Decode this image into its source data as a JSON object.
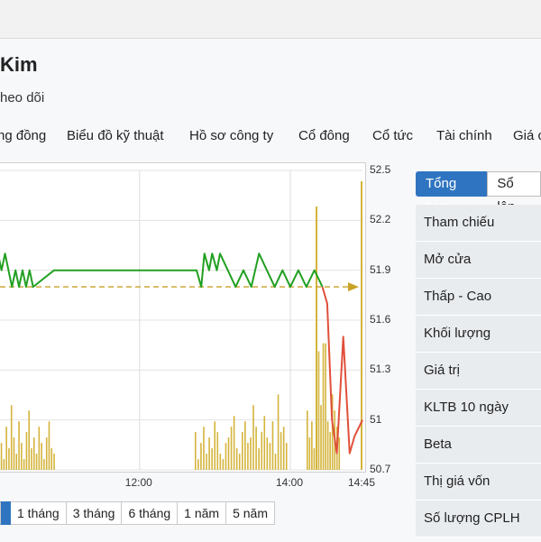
{
  "page": {
    "title": "Kim",
    "follow_label": "heo dõi"
  },
  "tabs": [
    {
      "label": "ng đồng"
    },
    {
      "label": "Biểu đồ kỹ thuật"
    },
    {
      "label": "Hồ sơ công ty"
    },
    {
      "label": "Cổ đông"
    },
    {
      "label": "Cổ tức"
    },
    {
      "label": "Tài chính"
    },
    {
      "label": "Giá c"
    }
  ],
  "chart_data": {
    "type": "line",
    "xlabel": "",
    "ylabel": "",
    "ylim": [
      50.7,
      52.5
    ],
    "y_ticks": [
      "52.5",
      "52.2",
      "51.9",
      "51.6",
      "51.3",
      "51",
      "50.7"
    ],
    "x_ticks": [
      "12:00",
      "14:00",
      "14:45"
    ],
    "reference_price": 51.8,
    "grid": true,
    "series": [
      {
        "color": "#22a022",
        "points": [
          [
            "09:00",
            52.0
          ],
          [
            "09:05",
            51.9
          ],
          [
            "09:10",
            52.0
          ],
          [
            "09:15",
            51.9
          ],
          [
            "09:20",
            52.0
          ],
          [
            "09:25",
            51.9
          ],
          [
            "09:30",
            51.8
          ],
          [
            "09:35",
            51.9
          ],
          [
            "09:40",
            51.8
          ],
          [
            "09:45",
            51.9
          ],
          [
            "09:50",
            51.8
          ],
          [
            "09:55",
            51.9
          ],
          [
            "10:00",
            51.8
          ],
          [
            "10:30",
            51.9
          ],
          [
            "13:00",
            51.9
          ],
          [
            "13:03",
            51.8
          ],
          [
            "13:05",
            52.0
          ],
          [
            "13:08",
            51.9
          ],
          [
            "13:10",
            52.0
          ],
          [
            "13:13",
            51.9
          ],
          [
            "13:15",
            52.0
          ],
          [
            "13:20",
            51.9
          ],
          [
            "13:25",
            51.8
          ],
          [
            "13:30",
            51.9
          ],
          [
            "13:35",
            51.8
          ],
          [
            "13:40",
            52.0
          ],
          [
            "13:45",
            51.9
          ],
          [
            "13:50",
            51.8
          ],
          [
            "13:55",
            51.9
          ],
          [
            "14:00",
            51.8
          ],
          [
            "14:05",
            51.9
          ],
          [
            "14:10",
            51.8
          ],
          [
            "14:15",
            51.9
          ],
          [
            "14:20",
            51.8
          ]
        ]
      },
      {
        "color": "#e0503a",
        "points": [
          [
            "14:20",
            51.8
          ],
          [
            "14:23",
            51.7
          ],
          [
            "14:26",
            51.0
          ],
          [
            "14:29",
            50.8
          ],
          [
            "14:33",
            51.5
          ],
          [
            "14:37",
            50.8
          ],
          [
            "14:40",
            50.9
          ],
          [
            "14:45",
            51.0
          ]
        ]
      }
    ],
    "volume_color": "#d4b43c",
    "volume": [
      3,
      5,
      2,
      8,
      4,
      12,
      6,
      3,
      9,
      5,
      2,
      7,
      11,
      4,
      6,
      3,
      8,
      5,
      2,
      6,
      9,
      4,
      3,
      7,
      2,
      5,
      8,
      3,
      6,
      4,
      9,
      7,
      3,
      2,
      5,
      6,
      8,
      10,
      4,
      3,
      7,
      9,
      5,
      6,
      12,
      8,
      4,
      7,
      10,
      6,
      5,
      9,
      3,
      14,
      7,
      8,
      5,
      11,
      6,
      9,
      4,
      18,
      22,
      12,
      30,
      48,
      9,
      7,
      14,
      11,
      8,
      6
    ]
  },
  "ranges": [
    {
      "label": ""
    },
    {
      "label": "1 tháng"
    },
    {
      "label": "3 tháng"
    },
    {
      "label": "6 tháng"
    },
    {
      "label": "1 năm"
    },
    {
      "label": "5 năm"
    }
  ],
  "side_panel": {
    "tabs": [
      {
        "label": "Tổng hợp"
      },
      {
        "label": "Sổ lện"
      }
    ],
    "rows": [
      {
        "label": "Tham chiếu"
      },
      {
        "label": "Mở cửa"
      },
      {
        "label": "Thấp - Cao"
      },
      {
        "label": "Khối lượng"
      },
      {
        "label": "Giá trị"
      },
      {
        "label": "KLTB 10 ngày"
      },
      {
        "label": "Beta"
      },
      {
        "label": "Thị giá vốn"
      },
      {
        "label": "Số lượng CPLH"
      }
    ]
  }
}
